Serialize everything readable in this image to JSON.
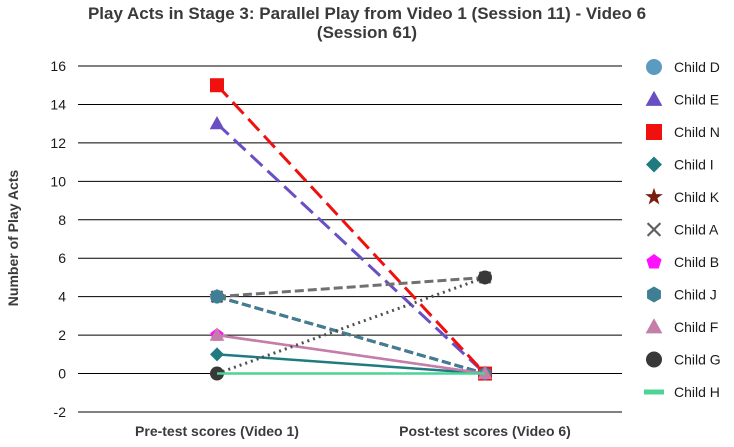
{
  "chart_data": {
    "type": "line",
    "title_line1": "Play Acts in Stage 3: Parallel Play from Video 1 (Session 11) - Video 6",
    "title_line2": "(Session 61)",
    "ylabel": "Number of Play Acts",
    "xlabel": "",
    "categories": [
      "Pre-test scores (Video 1)",
      "Post-test scores (Video 6)"
    ],
    "ylim": [
      -2,
      16
    ],
    "yticks": [
      -2,
      0,
      2,
      4,
      6,
      8,
      10,
      12,
      14,
      16
    ],
    "grid": "horizontal",
    "legend_position": "right",
    "series": [
      {
        "name": "Child D",
        "values": [
          4,
          0
        ],
        "color": "#5b9bbf",
        "marker": "circle",
        "line": "dashed",
        "line_color": "#5b9bbf"
      },
      {
        "name": "Child E",
        "values": [
          13,
          0
        ],
        "color": "#6a4fc4",
        "marker": "triangle",
        "line": "longdash",
        "line_color": "#6a4fc4"
      },
      {
        "name": "Child N",
        "values": [
          15,
          0
        ],
        "color": "#f01010",
        "marker": "square",
        "line": "longdash",
        "line_color": "#f01010"
      },
      {
        "name": "Child I",
        "values": [
          1,
          0
        ],
        "color": "#1f7b80",
        "marker": "diamond",
        "line": "solid",
        "line_color": "#1f7b80"
      },
      {
        "name": "Child K",
        "values": [
          4,
          0
        ],
        "color": "#7a1f10",
        "marker": "star",
        "line": "dashed",
        "line_color": "#7a1f10"
      },
      {
        "name": "Child A",
        "values": [
          4,
          5
        ],
        "color": "#606060",
        "marker": "x",
        "line": "dashed",
        "line_color": "#707070"
      },
      {
        "name": "Child B",
        "values": [
          2,
          0
        ],
        "color": "#ff10ff",
        "marker": "pentagon",
        "line": "solid",
        "line_color": "#d070d0"
      },
      {
        "name": "Child J",
        "values": [
          4,
          0
        ],
        "color": "#3f7f95",
        "marker": "hexagon",
        "line": "dashed",
        "line_color": "#3f7f95"
      },
      {
        "name": "Child F",
        "values": [
          2,
          0
        ],
        "color": "#c47fa8",
        "marker": "triangle",
        "line": "solid",
        "line_color": "#c47fa8"
      },
      {
        "name": "Child G",
        "values": [
          0,
          5
        ],
        "color": "#383838",
        "marker": "circle",
        "line": "dotted",
        "line_color": "#505050"
      },
      {
        "name": "Child H",
        "values": [
          0,
          0
        ],
        "color": "#4cd497",
        "marker": "none",
        "line": "solid",
        "line_color": "#4cd497"
      }
    ]
  }
}
